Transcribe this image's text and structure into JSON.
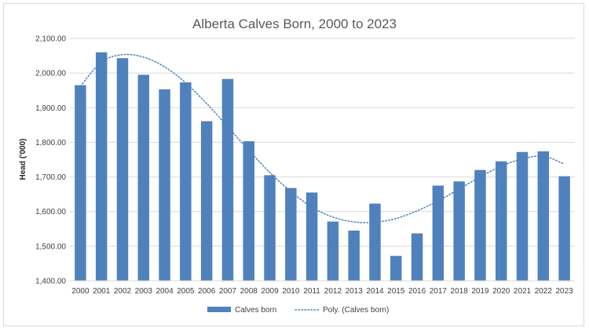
{
  "chart_data": {
    "type": "bar",
    "title": "Alberta Calves Born, 2000 to 2023",
    "xlabel": "",
    "ylabel": "Head ('000)",
    "ylim": [
      1400,
      2100
    ],
    "ytick_step": 100,
    "ytick_labels": [
      "1,400.00",
      "1,500.00",
      "1,600.00",
      "1,700.00",
      "1,800.00",
      "1,900.00",
      "2,000.00",
      "2,100.00"
    ],
    "grid": true,
    "legend_position": "bottom",
    "categories": [
      "2000",
      "2001",
      "2002",
      "2003",
      "2004",
      "2005",
      "2006",
      "2007",
      "2008",
      "2009",
      "2010",
      "2011",
      "2012",
      "2013",
      "2014",
      "2015",
      "2016",
      "2017",
      "2018",
      "2019",
      "2020",
      "2021",
      "2022",
      "2023"
    ],
    "series": [
      {
        "name": "Calves born",
        "color": "#4f81bd",
        "values": [
          1965,
          2060,
          2043,
          1995,
          1953,
          1973,
          1861,
          1983,
          1803,
          1705,
          1668,
          1655,
          1571,
          1545,
          1623,
          1472,
          1537,
          1675,
          1687,
          1720,
          1745,
          1772,
          1774,
          1702
        ]
      }
    ],
    "trendline": {
      "name": "Poly. (Calves born)",
      "color": "#4f81bd",
      "style": "dotted",
      "values": [
        1962,
        2032,
        2053,
        2046,
        2018,
        1972,
        1912,
        1845,
        1777,
        1713,
        1658,
        1613,
        1584,
        1570,
        1569,
        1580,
        1602,
        1631,
        1665,
        1700,
        1731,
        1752,
        1760,
        1737
      ]
    }
  }
}
